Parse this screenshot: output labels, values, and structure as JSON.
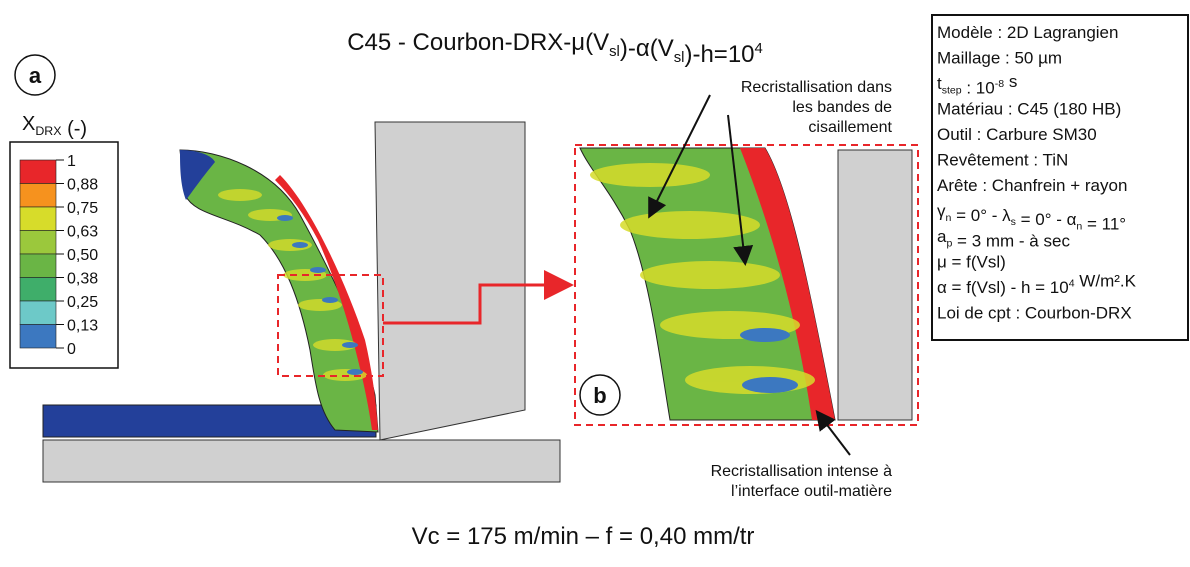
{
  "title": [
    "C45 - Courbon-DRX-μ(V",
    {
      "sub": "sl"
    },
    ")-α(V",
    {
      "sub": "sl"
    },
    ")-h=10",
    {
      "sup": "4"
    }
  ],
  "label_a": "a",
  "label_b": "b",
  "legend": {
    "title": [
      "X",
      {
        "sub": "DRX"
      },
      " (-)"
    ],
    "levels": [
      {
        "label": "1",
        "color": "#e8262a"
      },
      {
        "label": "0,88",
        "color": "#f6921e"
      },
      {
        "label": "0,75",
        "color": "#d7dc2a"
      },
      {
        "label": "0,63",
        "color": "#9bc83c"
      },
      {
        "label": "0,50",
        "color": "#6ab545"
      },
      {
        "label": "0,38",
        "color": "#3fae6a"
      },
      {
        "label": "0,25",
        "color": "#6dc9c8"
      },
      {
        "label": "0,13",
        "color": "#3c78c0"
      },
      {
        "label": "0",
        "color": "#23409a"
      }
    ]
  },
  "info": [
    [
      "Modèle : 2D Lagrangien"
    ],
    [
      "Maillage : 50 µm"
    ],
    [
      "t",
      {
        "sub": "step"
      },
      " : 10",
      {
        "sup": "-8"
      },
      " s"
    ],
    [
      "Matériau : C45 (180 HB)"
    ],
    [
      "Outil : Carbure SM30"
    ],
    [
      "Revêtement : TiN"
    ],
    [
      "Arête : Chanfrein + rayon"
    ],
    [
      "γ",
      {
        "sub": "n"
      },
      " = 0° - λ",
      {
        "sub": "s"
      },
      " = 0° - α",
      {
        "sub": "n"
      },
      " = 11°"
    ],
    [
      "a",
      {
        "sub": "p"
      },
      " = 3 mm - à sec"
    ],
    [
      "μ = f(Vsl)"
    ],
    [
      "α = f(Vsl) - h = 10",
      {
        "sup": "4"
      },
      " W/m².K"
    ],
    [
      "Loi de cpt : Courbon-DRX"
    ]
  ],
  "annotation_top": [
    "Recristallisation dans",
    "les bandes de",
    "cisaillement"
  ],
  "annotation_bottom": [
    "Recristallisation intense à",
    "l’interface outil-matière"
  ],
  "footer": "Vc = 175 m/min – f = 0,40 mm/tr"
}
